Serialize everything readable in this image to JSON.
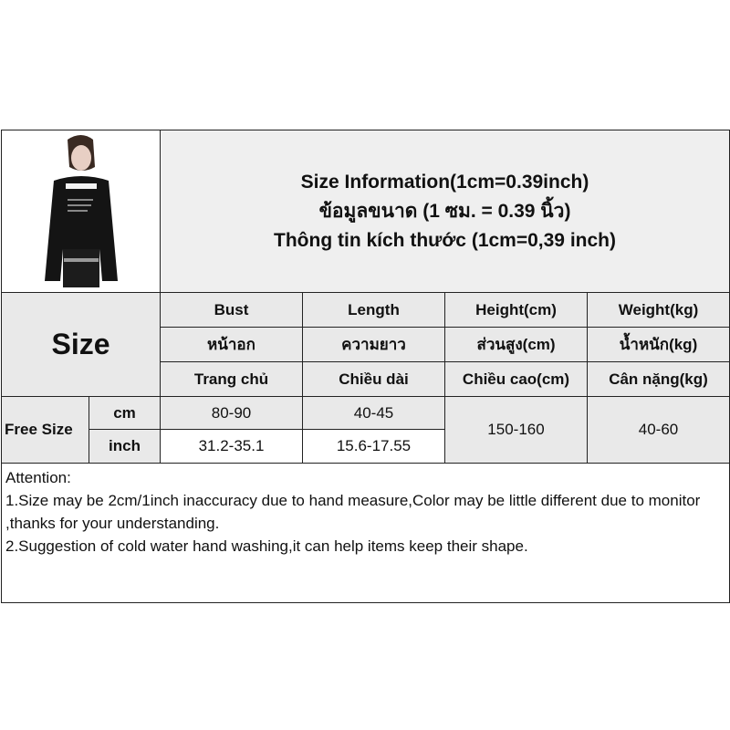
{
  "title": {
    "line1": "Size Information(1cm=0.39inch)",
    "line2": "ข้อมูลขนาด (1 ซม. = 0.39 นิ้ว)",
    "line3": "Thông tin kích thước (1cm=0,39 inch)"
  },
  "size_label": "Size",
  "headers": [
    {
      "en": "Bust",
      "th": "หน้าอก",
      "vi": "Trang chủ"
    },
    {
      "en": "Length",
      "th": "ความยาว",
      "vi": "Chiều dài"
    },
    {
      "en": "Height(cm)",
      "th": "ส่วนสูง(cm)",
      "vi": "Chiều cao(cm)"
    },
    {
      "en": "Weight(kg)",
      "th": "น้ำหนัก(kg)",
      "vi": "Cân nặng(kg)"
    }
  ],
  "rows": {
    "size_name": "Free Size",
    "cm": {
      "unit": "cm",
      "bust": "80-90",
      "length": "40-45"
    },
    "inch": {
      "unit": "inch",
      "bust": "31.2-35.1",
      "length": "15.6-17.55"
    },
    "height": "150-160",
    "weight": "40-60"
  },
  "attention": {
    "heading": "Attention:",
    "note1": "1.Size may be 2cm/1inch inaccuracy due to hand measure,Color may be little different due to monitor ,thanks for your understanding.",
    "note2": "2.Suggestion of cold water hand washing,it can help items keep their shape."
  }
}
